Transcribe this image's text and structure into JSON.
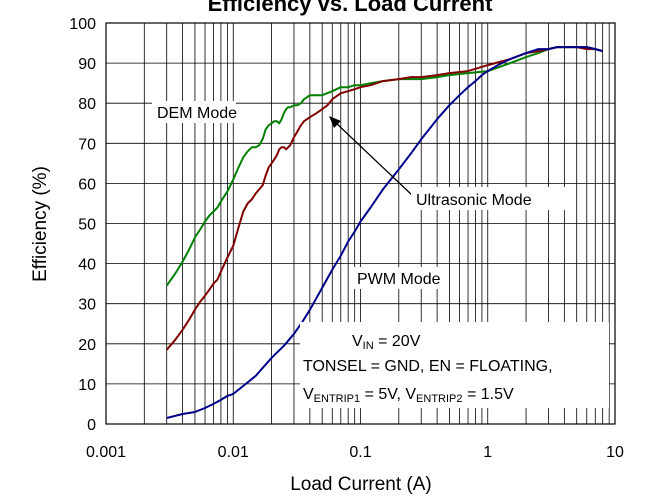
{
  "chart_data": {
    "type": "line",
    "title": "Efficiency vs. Load Current",
    "xlabel": "Load Current (A)",
    "ylabel": "Efficiency (%)",
    "x_scale": "log",
    "xlim": [
      0.001,
      10
    ],
    "ylim": [
      0,
      100
    ],
    "grid": true,
    "x_tick_labels": [
      "0.001",
      "0.01",
      "0.1",
      "1",
      "10"
    ],
    "y_tick_labels": [
      "0",
      "10",
      "20",
      "30",
      "40",
      "50",
      "60",
      "70",
      "80",
      "90",
      "100"
    ],
    "series": [
      {
        "name": "DEM Mode",
        "color": "#008000",
        "x": [
          0.003,
          0.0035,
          0.004,
          0.0045,
          0.005,
          0.0055,
          0.006,
          0.0065,
          0.007,
          0.0075,
          0.008,
          0.009,
          0.01,
          0.011,
          0.012,
          0.013,
          0.014,
          0.015,
          0.016,
          0.017,
          0.018,
          0.019,
          0.02,
          0.021,
          0.022,
          0.023,
          0.024,
          0.025,
          0.026,
          0.027,
          0.028,
          0.03,
          0.032,
          0.034,
          0.036,
          0.038,
          0.04,
          0.045,
          0.05,
          0.06,
          0.07,
          0.08,
          0.09,
          0.1,
          0.12,
          0.15,
          0.2,
          0.25,
          0.3,
          0.4,
          0.5,
          0.7,
          1.0,
          1.5,
          2.0,
          2.5,
          3.0,
          3.5,
          4.0,
          5.0,
          6.0,
          7.0,
          8.0
        ],
        "values": [
          34.5,
          37.5,
          40.5,
          43.5,
          46.5,
          48.5,
          50.5,
          52.0,
          53.0,
          54.0,
          55.5,
          58.0,
          61.0,
          64.0,
          66.5,
          68.0,
          69.0,
          69.0,
          69.5,
          71.0,
          73.5,
          74.5,
          75.0,
          75.5,
          75.5,
          75.0,
          76.0,
          77.5,
          78.5,
          79.0,
          79.0,
          79.5,
          79.5,
          80.0,
          81.0,
          81.5,
          82.0,
          82.0,
          82.0,
          83.0,
          84.0,
          84.0,
          84.5,
          84.5,
          85.0,
          85.5,
          86.0,
          86.0,
          86.0,
          86.5,
          87.0,
          87.5,
          88.0,
          90.0,
          91.5,
          92.5,
          93.5,
          94.0,
          94.0,
          94.0,
          94.0,
          93.5,
          93.0
        ]
      },
      {
        "name": "Ultrasonic Mode",
        "color": "#800000",
        "x": [
          0.003,
          0.0035,
          0.004,
          0.0045,
          0.005,
          0.0055,
          0.006,
          0.0065,
          0.007,
          0.0075,
          0.008,
          0.009,
          0.01,
          0.011,
          0.012,
          0.013,
          0.014,
          0.015,
          0.016,
          0.017,
          0.018,
          0.019,
          0.02,
          0.021,
          0.022,
          0.023,
          0.024,
          0.025,
          0.026,
          0.027,
          0.028,
          0.03,
          0.032,
          0.034,
          0.036,
          0.038,
          0.04,
          0.045,
          0.05,
          0.055,
          0.06,
          0.07,
          0.08,
          0.09,
          0.1,
          0.12,
          0.15,
          0.2,
          0.25,
          0.3,
          0.4,
          0.5,
          0.7,
          1.0,
          1.5,
          2.0,
          2.5,
          3.0,
          3.5,
          4.0,
          5.0,
          6.0,
          7.0,
          8.0
        ],
        "values": [
          18.5,
          21.0,
          23.5,
          26.0,
          28.5,
          30.5,
          32.0,
          33.5,
          35.0,
          36.0,
          38.0,
          41.5,
          44.5,
          49.0,
          53.0,
          55.0,
          56.0,
          57.5,
          58.5,
          59.5,
          62.0,
          64.0,
          65.0,
          66.0,
          67.0,
          68.5,
          69.0,
          69.0,
          68.5,
          69.0,
          69.5,
          71.5,
          73.0,
          74.5,
          75.5,
          76.0,
          76.5,
          77.5,
          78.5,
          79.5,
          81.0,
          82.5,
          83.0,
          83.5,
          84.0,
          84.5,
          85.5,
          86.0,
          86.5,
          86.5,
          87.0,
          87.5,
          88.0,
          89.5,
          91.0,
          92.5,
          93.0,
          93.5,
          94.0,
          94.0,
          94.0,
          93.5,
          93.5,
          93.0
        ]
      },
      {
        "name": "PWM Mode",
        "color": "#00008b",
        "x": [
          0.003,
          0.004,
          0.005,
          0.006,
          0.007,
          0.008,
          0.009,
          0.01,
          0.012,
          0.015,
          0.02,
          0.025,
          0.03,
          0.035,
          0.04,
          0.05,
          0.06,
          0.07,
          0.08,
          0.09,
          0.1,
          0.12,
          0.15,
          0.2,
          0.25,
          0.3,
          0.4,
          0.5,
          0.6,
          0.7,
          0.8,
          0.9,
          1.0,
          1.2,
          1.5,
          2.0,
          2.5,
          3.0,
          3.5,
          4.0,
          5.0,
          6.0,
          7.0,
          8.0
        ],
        "values": [
          1.5,
          2.5,
          3.0,
          4.0,
          5.0,
          6.0,
          7.0,
          7.5,
          9.5,
          12.0,
          16.5,
          19.5,
          22.5,
          25.5,
          28.5,
          34.0,
          38.5,
          42.0,
          45.5,
          48.0,
          50.5,
          54.0,
          58.5,
          63.5,
          67.5,
          71.0,
          76.0,
          79.5,
          82.0,
          84.0,
          85.5,
          87.0,
          88.0,
          89.5,
          91.0,
          92.5,
          93.5,
          93.5,
          94.0,
          94.0,
          94.0,
          94.0,
          93.5,
          93.0
        ]
      }
    ],
    "annotations": {
      "dem_label": "DEM Mode",
      "ultrasonic_label": "Ultrasonic Mode",
      "pwm_label": "PWM Mode",
      "vin_prefix": "V",
      "vin_sub": "IN",
      "vin_value": " = 20V",
      "tonsel_text": "TONSEL = GND, EN = FLOATING,",
      "ventrip1_prefix": "V",
      "ventrip1_sub": "ENTRIP1",
      "ventrip1_value": " = 5V, ",
      "ventrip2_prefix": "V",
      "ventrip2_sub": "ENTRIP2",
      "ventrip2_value": " = 1.5V"
    }
  }
}
